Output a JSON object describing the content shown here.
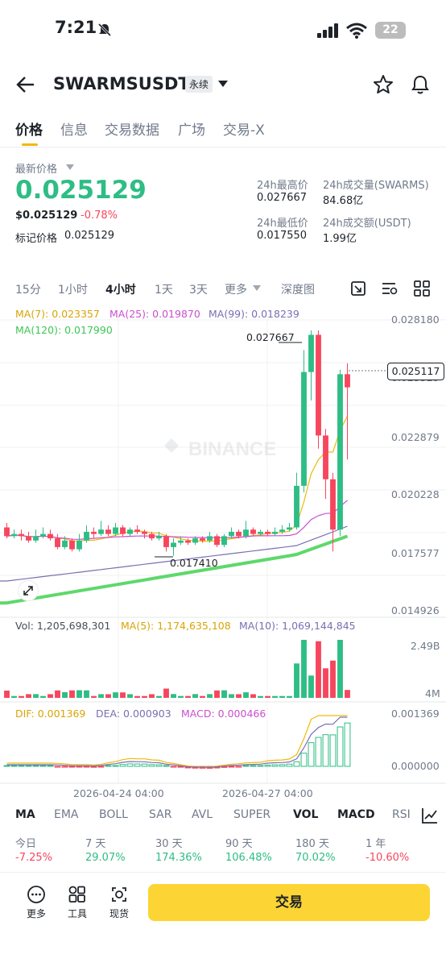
{
  "status": {
    "time": "7:21",
    "battery": "22"
  },
  "header": {
    "symbol": "SWARMSUSDT",
    "contract_type": "永续"
  },
  "tabs": [
    "价格",
    "信息",
    "交易数据",
    "广场",
    "交易-X"
  ],
  "price": {
    "label": "最新价格",
    "last": "0.025129",
    "usd": "$0.025129",
    "change": "-0.78%",
    "mark_label": "标记价格",
    "mark_value": "0.025129"
  },
  "stats": {
    "high_label": "24h最高价",
    "high": "0.027667",
    "low_label": "24h最低价",
    "low": "0.017550",
    "vol_label": "24h成交量(SWARMS)",
    "vol": "84.68亿",
    "amt_label": "24h成交额(USDT)",
    "amt": "1.99亿"
  },
  "intervals": [
    "15分",
    "1小时",
    "4小时",
    "1天",
    "3天",
    "更多",
    "深度图"
  ],
  "ma": {
    "ma7": "MA(7): 0.023357",
    "ma25": "MA(25): 0.019870",
    "ma99": "MA(99): 0.018239",
    "ma120": "MA(120): 0.017990"
  },
  "chart_data": {
    "type": "candlestick",
    "y_axis": [
      "0.028180",
      "0.025529",
      "0.022879",
      "0.020228",
      "0.017577",
      "0.014926"
    ],
    "ylim": [
      0.014926,
      0.02818
    ],
    "current_price": "0.025117",
    "high_annotation": "0.027667",
    "low_annotation": "0.017410",
    "x_labels": [
      "2026-04-24 04:00",
      "2026-04-27 04:00"
    ],
    "watermark": "BINANCE",
    "candles": [
      [
        0.0187,
        0.0183,
        0.0189,
        0.0182
      ],
      [
        0.0183,
        0.0184,
        0.0186,
        0.0182
      ],
      [
        0.0184,
        0.0183,
        0.0186,
        0.0181
      ],
      [
        0.0183,
        0.0181,
        0.0185,
        0.018
      ],
      [
        0.0181,
        0.0183,
        0.0186,
        0.018
      ],
      [
        0.0183,
        0.0184,
        0.0187,
        0.0182
      ],
      [
        0.0184,
        0.0182,
        0.0186,
        0.0181
      ],
      [
        0.0182,
        0.0178,
        0.0184,
        0.0177
      ],
      [
        0.0178,
        0.0181,
        0.0183,
        0.0177
      ],
      [
        0.0181,
        0.0177,
        0.0182,
        0.0176
      ],
      [
        0.0177,
        0.0181,
        0.0184,
        0.0176
      ],
      [
        0.0181,
        0.0185,
        0.0188,
        0.018
      ],
      [
        0.0185,
        0.0184,
        0.0187,
        0.0182
      ],
      [
        0.0184,
        0.0186,
        0.019,
        0.0183
      ],
      [
        0.0186,
        0.0184,
        0.0188,
        0.0183
      ],
      [
        0.0184,
        0.0187,
        0.0189,
        0.0183
      ],
      [
        0.0187,
        0.0184,
        0.0188,
        0.0183
      ],
      [
        0.0184,
        0.0186,
        0.0187,
        0.0183
      ],
      [
        0.0186,
        0.0185,
        0.0188,
        0.0184
      ],
      [
        0.0185,
        0.0184,
        0.0186,
        0.0182
      ],
      [
        0.0184,
        0.0182,
        0.0185,
        0.0181
      ],
      [
        0.0182,
        0.0183,
        0.0185,
        0.0181
      ],
      [
        0.0183,
        0.0178,
        0.0184,
        0.0176
      ],
      [
        0.0178,
        0.018,
        0.0182,
        0.0174
      ],
      [
        0.018,
        0.0181,
        0.0183,
        0.0179
      ],
      [
        0.0181,
        0.018,
        0.0182,
        0.0179
      ],
      [
        0.018,
        0.0182,
        0.0183,
        0.0179
      ],
      [
        0.0182,
        0.0181,
        0.0183,
        0.018
      ],
      [
        0.0181,
        0.0183,
        0.0185,
        0.018
      ],
      [
        0.0183,
        0.0179,
        0.0184,
        0.0178
      ],
      [
        0.0179,
        0.0183,
        0.0184,
        0.0178
      ],
      [
        0.0183,
        0.0185,
        0.0187,
        0.0182
      ],
      [
        0.0185,
        0.0183,
        0.0186,
        0.0182
      ],
      [
        0.0183,
        0.0186,
        0.019,
        0.0182
      ],
      [
        0.0186,
        0.0184,
        0.0187,
        0.0183
      ],
      [
        0.0184,
        0.0185,
        0.0186,
        0.0183
      ],
      [
        0.0185,
        0.0184,
        0.0186,
        0.0183
      ],
      [
        0.0184,
        0.0185,
        0.0187,
        0.0183
      ],
      [
        0.0185,
        0.0186,
        0.0188,
        0.0184
      ],
      [
        0.0186,
        0.0187,
        0.0189,
        0.0185
      ],
      [
        0.0187,
        0.0206,
        0.0212,
        0.0186
      ],
      [
        0.0206,
        0.0258,
        0.0268,
        0.0203
      ],
      [
        0.0258,
        0.0275,
        0.0277,
        0.0245
      ],
      [
        0.0275,
        0.0229,
        0.0277,
        0.0223
      ],
      [
        0.0229,
        0.0209,
        0.0232,
        0.02
      ],
      [
        0.0209,
        0.0186,
        0.0212,
        0.0176
      ],
      [
        0.0186,
        0.0257,
        0.0259,
        0.0183
      ],
      [
        0.0257,
        0.0251,
        0.0262,
        0.0218
      ]
    ]
  },
  "volume": {
    "vol": "Vol: 1,205,698,301",
    "ma5": "MA(5): 1,174,635,108",
    "ma10": "MA(10): 1,069,144,845",
    "y_top": "2.49B",
    "y_bottom": "4M"
  },
  "macd": {
    "dif": "DIF: 0.001369",
    "dea": "DEA: 0.000903",
    "macd": "MACD: 0.000466",
    "y_top": "0.001369",
    "y_zero": "0.000000"
  },
  "indicators": [
    "MA",
    "EMA",
    "BOLL",
    "SAR",
    "AVL",
    "SUPER",
    "VOL",
    "MACD",
    "RSI"
  ],
  "performance": [
    {
      "label": "今日",
      "value": "-7.25%"
    },
    {
      "label": "7 天",
      "value": "29.07%"
    },
    {
      "label": "30 天",
      "value": "174.36%"
    },
    {
      "label": "90 天",
      "value": "106.48%"
    },
    {
      "label": "180 天",
      "value": "70.02%"
    },
    {
      "label": "1 年",
      "value": "-10.60%"
    }
  ],
  "bottom": {
    "more": "更多",
    "tools": "工具",
    "spot": "现货",
    "trade": "交易"
  },
  "colors": {
    "up": "#2ebd85",
    "down": "#f6465d",
    "ma7": "#f0b90b",
    "ma25": "#c94fcf",
    "ma99": "#7a6fb3",
    "ma120": "#5ed86b"
  }
}
